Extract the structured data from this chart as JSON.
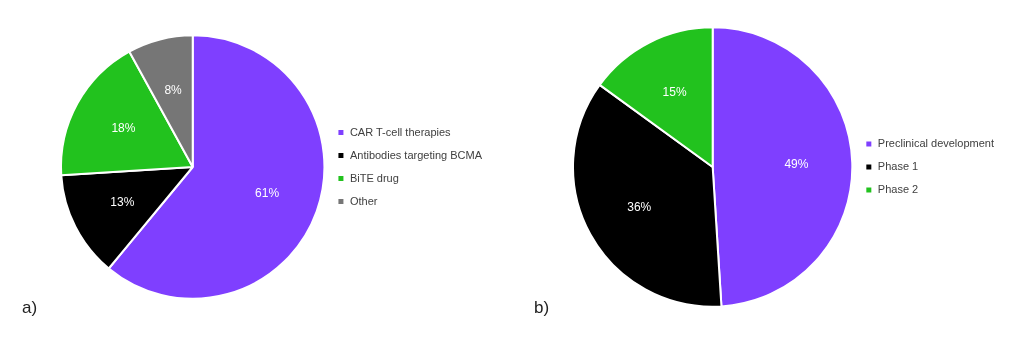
{
  "chart_data": [
    {
      "type": "pie",
      "categories": [
        "CAR T-cell therapies",
        "Antibodies targeting BCMA",
        "BiTE drug",
        "Other"
      ],
      "values": [
        61,
        13,
        18,
        8
      ],
      "colors": [
        "#7f3fff",
        "#000000",
        "#22c21e",
        "#767676"
      ],
      "value_labels": [
        "61%",
        "13%",
        "18%",
        "8%"
      ],
      "legend": "right",
      "annotations": [
        "a)"
      ]
    },
    {
      "type": "pie",
      "categories": [
        "Preclinical development",
        "Phase 1",
        "Phase 2"
      ],
      "values": [
        49,
        36,
        15
      ],
      "colors": [
        "#7f3fff",
        "#000000",
        "#22c21e"
      ],
      "value_labels": [
        "49%",
        "36%",
        "15%"
      ],
      "legend": "right",
      "annotations": [
        "b)"
      ]
    }
  ]
}
